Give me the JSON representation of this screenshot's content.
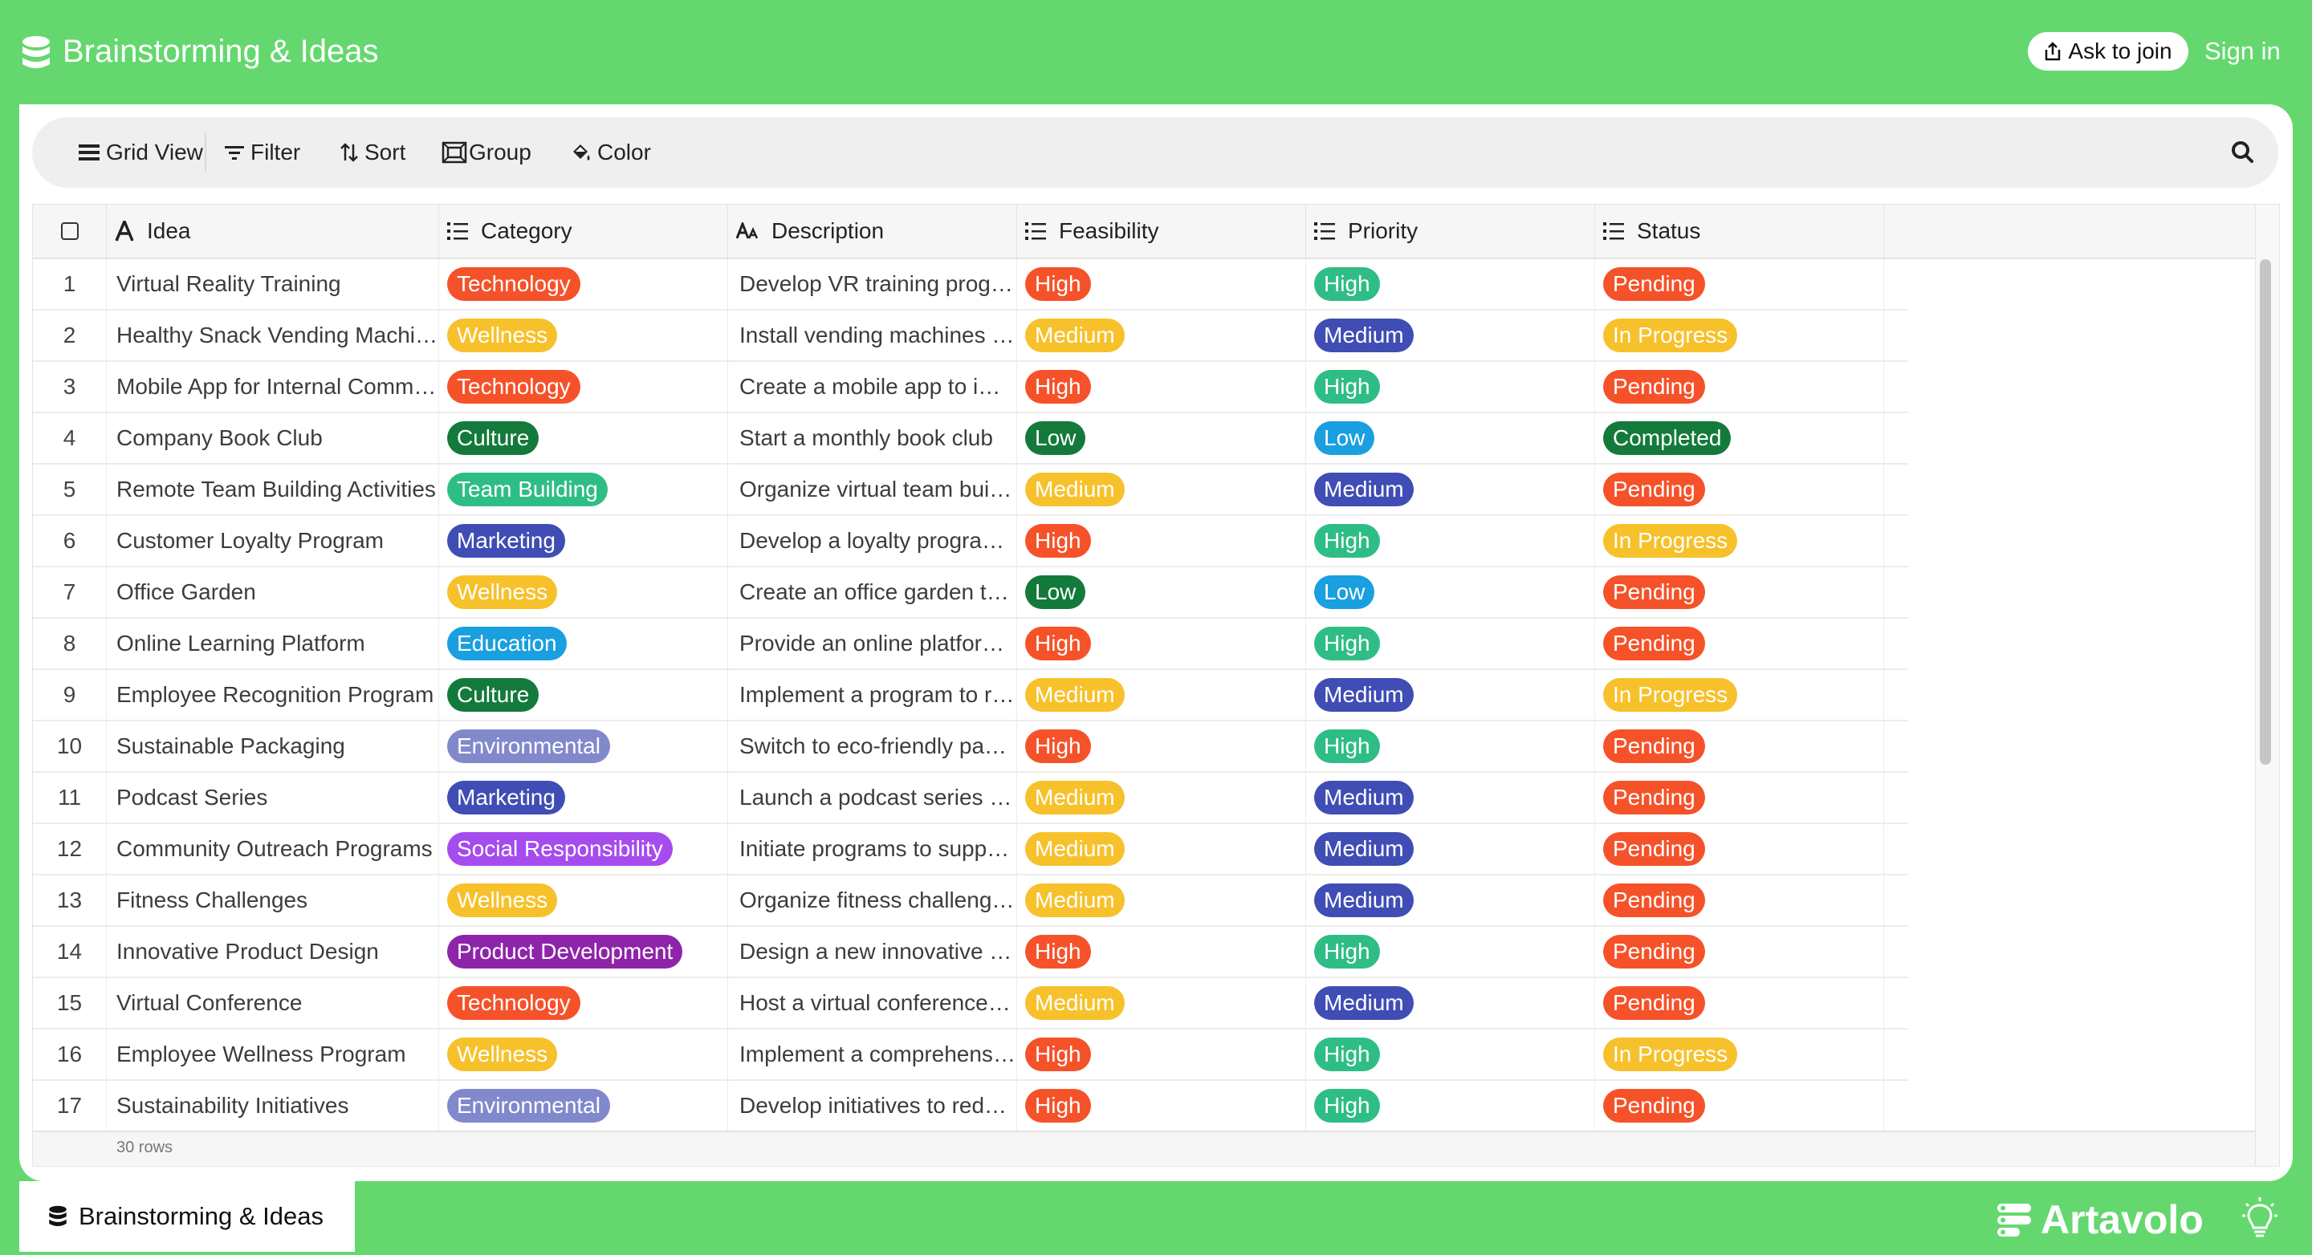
{
  "header": {
    "app_title": "Brainstorming & Ideas",
    "ask_to_join": "Ask to join",
    "sign_in": "Sign in"
  },
  "toolbar": {
    "grid_view": "Grid View",
    "filter": "Filter",
    "sort": "Sort",
    "group": "Group",
    "color": "Color"
  },
  "table": {
    "columns": [
      "Idea",
      "Category",
      "Description",
      "Feasibility",
      "Priority",
      "Status"
    ],
    "rows": [
      {
        "num": "1",
        "idea": "Virtual Reality Training",
        "category": "Technology",
        "description": "Develop VR training programs",
        "feasibility": "High",
        "priority": "High",
        "status": "Pending"
      },
      {
        "num": "2",
        "idea": "Healthy Snack Vending Machines",
        "category": "Wellness",
        "description": "Install vending machines with healthy snacks",
        "feasibility": "Medium",
        "priority": "Medium",
        "status": "In Progress"
      },
      {
        "num": "3",
        "idea": "Mobile App for Internal Communication",
        "category": "Technology",
        "description": "Create a mobile app to improve communication",
        "feasibility": "High",
        "priority": "High",
        "status": "Pending"
      },
      {
        "num": "4",
        "idea": "Company Book Club",
        "category": "Culture",
        "description": "Start a monthly book club",
        "feasibility": "Low",
        "priority": "Low",
        "status": "Completed"
      },
      {
        "num": "5",
        "idea": "Remote Team Building Activities",
        "category": "Team Building",
        "description": "Organize virtual team building events",
        "feasibility": "Medium",
        "priority": "Medium",
        "status": "Pending"
      },
      {
        "num": "6",
        "idea": "Customer Loyalty Program",
        "category": "Marketing",
        "description": "Develop a loyalty program for customers",
        "feasibility": "High",
        "priority": "High",
        "status": "In Progress"
      },
      {
        "num": "7",
        "idea": "Office Garden",
        "category": "Wellness",
        "description": "Create an office garden to improve morale",
        "feasibility": "Low",
        "priority": "Low",
        "status": "Pending"
      },
      {
        "num": "8",
        "idea": "Online Learning Platform",
        "category": "Education",
        "description": "Provide an online platform for courses",
        "feasibility": "High",
        "priority": "High",
        "status": "Pending"
      },
      {
        "num": "9",
        "idea": "Employee Recognition Program",
        "category": "Culture",
        "description": "Implement a program to recognize employees",
        "feasibility": "Medium",
        "priority": "Medium",
        "status": "In Progress"
      },
      {
        "num": "10",
        "idea": "Sustainable Packaging",
        "category": "Environmental",
        "description": "Switch to eco-friendly packaging",
        "feasibility": "High",
        "priority": "High",
        "status": "Pending"
      },
      {
        "num": "11",
        "idea": "Podcast Series",
        "category": "Marketing",
        "description": "Launch a podcast series about the industry",
        "feasibility": "Medium",
        "priority": "Medium",
        "status": "Pending"
      },
      {
        "num": "12",
        "idea": "Community Outreach Programs",
        "category": "Social Responsibility",
        "description": "Initiate programs to support the community",
        "feasibility": "Medium",
        "priority": "Medium",
        "status": "Pending"
      },
      {
        "num": "13",
        "idea": "Fitness Challenges",
        "category": "Wellness",
        "description": "Organize fitness challenges for employees",
        "feasibility": "Medium",
        "priority": "Medium",
        "status": "Pending"
      },
      {
        "num": "14",
        "idea": "Innovative Product Design",
        "category": "Product Development",
        "description": "Design a new innovative product",
        "feasibility": "High",
        "priority": "High",
        "status": "Pending"
      },
      {
        "num": "15",
        "idea": "Virtual Conference",
        "category": "Technology",
        "description": "Host a virtual conference for the industry",
        "feasibility": "Medium",
        "priority": "Medium",
        "status": "Pending"
      },
      {
        "num": "16",
        "idea": "Employee Wellness Program",
        "category": "Wellness",
        "description": "Implement a comprehensive wellness program",
        "feasibility": "High",
        "priority": "High",
        "status": "In Progress"
      },
      {
        "num": "17",
        "idea": "Sustainability Initiatives",
        "category": "Environmental",
        "description": "Develop initiatives to reduce waste",
        "feasibility": "High",
        "priority": "High",
        "status": "Pending"
      }
    ],
    "row_count": "30 rows"
  },
  "bottom_tab": "Brainstorming & Ideas",
  "brand": "Artavolo",
  "colors": {
    "background": "#64d86f",
    "category": {
      "Technology": "#f5522a",
      "Wellness": "#f7c12b",
      "Culture": "#137a3c",
      "Team Building": "#2fbd86",
      "Marketing": "#3f4db5",
      "Education": "#1a9fe0",
      "Environmental": "#8189cc",
      "Social Responsibility": "#a64bee",
      "Product Development": "#8e24aa"
    },
    "level": {
      "High": "#f5522a",
      "Medium": "#f7c12b",
      "Low": "#137a3c"
    },
    "priority": {
      "High": "#2fbd86",
      "Medium": "#3f4db5",
      "Low": "#1a9fe0"
    },
    "status": {
      "Pending": "#f5522a",
      "In Progress": "#f7c12b",
      "Completed": "#137a3c"
    }
  },
  "icons": {
    "app": "database-icon",
    "ask_to_join": "share-icon",
    "grid_view": "list-icon",
    "filter": "filter-icon",
    "sort": "sort-icon",
    "group": "group-icon",
    "color": "paint-bucket-icon",
    "search": "search-icon",
    "bulb": "lightbulb-icon"
  }
}
